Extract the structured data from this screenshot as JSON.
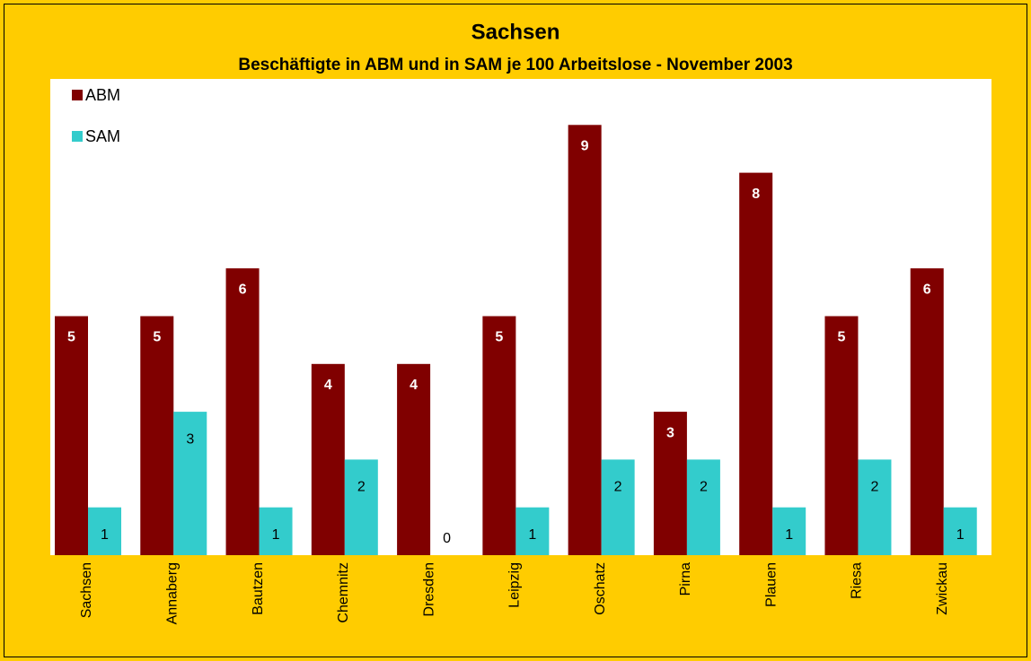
{
  "chart_data": {
    "type": "bar",
    "title": "Sachsen",
    "subtitle": "Beschäftigte in ABM und in SAM je 100 Arbeitslose  - November 2003",
    "categories": [
      "Sachsen",
      "Annaberg",
      "Bautzen",
      "Chemnitz",
      "Dresden",
      "Leipzig",
      "Oschatz",
      "Pirna",
      "Plauen",
      "Riesa",
      "Zwickau"
    ],
    "series": [
      {
        "name": "ABM",
        "color": "#800000",
        "values": [
          5,
          5,
          6,
          4,
          4,
          5,
          9,
          3,
          8,
          5,
          6
        ]
      },
      {
        "name": "SAM",
        "color": "#33CCCC",
        "values": [
          1,
          3,
          1,
          2,
          0,
          1,
          2,
          2,
          1,
          2,
          1
        ]
      }
    ],
    "ylim": [
      0,
      10
    ],
    "legend": "top-left"
  }
}
